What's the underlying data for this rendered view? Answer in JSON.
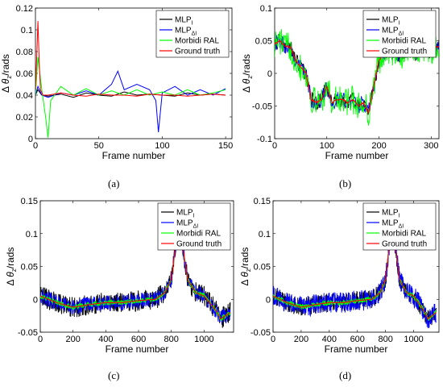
{
  "legend": {
    "mlp_i": "MLP",
    "mlp_i_sub": "I",
    "mlp_di": "MLP",
    "mlp_di_sub": "ΔI",
    "morbidi": "Morbidi RAL",
    "gt": "Ground truth"
  },
  "axis_common": {
    "xlabel": "Frame number",
    "ylabel_delta": "Δ",
    "ylabel_theta": "θ",
    "ylabel_sub": "z",
    "ylabel_unit": "/rads"
  },
  "colors": {
    "mlp_i": "#000000",
    "mlp_di": "#0000ff",
    "morbidi": "#00ff00",
    "gt": "#ff0000"
  },
  "chart_data": [
    {
      "id": "a",
      "caption": "(a)",
      "type": "line",
      "xlim": [
        0,
        155
      ],
      "ylim": [
        0,
        0.12
      ],
      "xticks": [
        0,
        50,
        100,
        150
      ],
      "yticks": [
        0,
        0.02,
        0.04,
        0.06,
        0.08,
        0.1,
        0.12
      ],
      "ytick_labels": [
        "0",
        "0.02",
        "0.04",
        "0.06",
        "0.08",
        "0.1",
        "0.12"
      ],
      "n": 150,
      "series": [
        {
          "name": "MLP_I",
          "key": "mlp_i",
          "x": [
            0,
            2,
            5,
            10,
            20,
            30,
            40,
            50,
            60,
            70,
            80,
            90,
            100,
            110,
            120,
            130,
            140,
            150
          ],
          "y": [
            0.04,
            0.045,
            0.04,
            0.039,
            0.041,
            0.038,
            0.042,
            0.04,
            0.039,
            0.043,
            0.04,
            0.041,
            0.04,
            0.039,
            0.042,
            0.04,
            0.041,
            0.04
          ]
        },
        {
          "name": "MLP_ΔI",
          "key": "mlp_di",
          "x": [
            0,
            2,
            5,
            10,
            20,
            30,
            40,
            50,
            60,
            65,
            70,
            80,
            90,
            95,
            97,
            100,
            110,
            120,
            130,
            140,
            150
          ],
          "y": [
            0.04,
            0.048,
            0.04,
            0.038,
            0.042,
            0.04,
            0.044,
            0.04,
            0.05,
            0.062,
            0.045,
            0.05,
            0.045,
            0.035,
            0.006,
            0.042,
            0.048,
            0.04,
            0.045,
            0.04,
            0.046
          ]
        },
        {
          "name": "Morbidi RAL",
          "key": "morbidi",
          "x": [
            0,
            2,
            5,
            8,
            10,
            12,
            20,
            30,
            40,
            50,
            60,
            70,
            80,
            90,
            100,
            110,
            120,
            130,
            140,
            150
          ],
          "y": [
            0.04,
            0.075,
            0.045,
            0.02,
            0.001,
            0.035,
            0.048,
            0.04,
            0.046,
            0.04,
            0.044,
            0.04,
            0.045,
            0.04,
            0.043,
            0.04,
            0.045,
            0.04,
            0.042,
            0.045
          ]
        },
        {
          "name": "Ground truth",
          "key": "gt",
          "x": [
            0,
            1,
            2,
            3,
            4,
            6,
            10,
            20,
            30,
            40,
            50,
            60,
            70,
            80,
            90,
            100,
            110,
            120,
            130,
            140,
            150
          ],
          "y": [
            0.045,
            0.075,
            0.108,
            0.07,
            0.045,
            0.04,
            0.04,
            0.042,
            0.04,
            0.039,
            0.041,
            0.04,
            0.04,
            0.039,
            0.041,
            0.04,
            0.04,
            0.039,
            0.04,
            0.041,
            0.04
          ]
        }
      ]
    },
    {
      "id": "b",
      "caption": "(b)",
      "type": "line",
      "xlim": [
        0,
        315
      ],
      "ylim": [
        -0.1,
        0.1
      ],
      "xticks": [
        0,
        100,
        200,
        300
      ],
      "yticks": [
        -0.1,
        -0.05,
        0,
        0.05,
        0.1
      ],
      "ytick_labels": [
        "-0.1",
        "-0.05",
        "0",
        "0.05",
        "0.1"
      ],
      "n": 315,
      "gt_x": [
        0,
        10,
        20,
        30,
        40,
        50,
        60,
        70,
        80,
        90,
        100,
        110,
        120,
        130,
        140,
        150,
        160,
        170,
        180,
        190,
        200,
        210,
        220,
        230,
        240,
        250,
        260,
        270,
        280,
        290,
        300,
        310,
        315
      ],
      "gt_y": [
        0.045,
        0.05,
        0.042,
        0.04,
        0.02,
        0.01,
        0.0,
        -0.04,
        -0.045,
        -0.04,
        -0.02,
        -0.045,
        -0.04,
        -0.04,
        -0.045,
        -0.04,
        -0.05,
        -0.045,
        -0.06,
        -0.02,
        0.02,
        0.03,
        0.035,
        0.03,
        0.025,
        0.035,
        0.04,
        0.03,
        0.04,
        0.035,
        0.035,
        0.04,
        0.04
      ],
      "noise": [
        0.012,
        0.012,
        0.022,
        0.008
      ],
      "series": [
        {
          "name": "MLP_I",
          "key": "mlp_i"
        },
        {
          "name": "MLP_ΔI",
          "key": "mlp_di"
        },
        {
          "name": "Morbidi RAL",
          "key": "morbidi"
        },
        {
          "name": "Ground truth",
          "key": "gt"
        }
      ]
    },
    {
      "id": "c",
      "caption": "(c)",
      "type": "line",
      "xlim": [
        0,
        1180
      ],
      "ylim": [
        -0.05,
        0.15
      ],
      "xticks": [
        0,
        200,
        400,
        600,
        800,
        1000
      ],
      "yticks": [
        -0.05,
        0,
        0.05,
        0.1,
        0.15
      ],
      "ytick_labels": [
        "-0.05",
        "0",
        "0.05",
        "0.1",
        "0.15"
      ],
      "n": 1160,
      "gt_x": [
        0,
        100,
        200,
        300,
        400,
        500,
        600,
        700,
        760,
        800,
        830,
        850,
        870,
        900,
        950,
        1000,
        1050,
        1080,
        1100,
        1130,
        1160
      ],
      "gt_y": [
        0.005,
        -0.005,
        -0.012,
        -0.008,
        -0.005,
        -0.005,
        -0.002,
        0.0,
        0.01,
        0.03,
        0.09,
        0.135,
        0.08,
        0.03,
        0.01,
        0.005,
        -0.01,
        -0.02,
        -0.03,
        -0.025,
        -0.02
      ],
      "noise": [
        0.016,
        0.012,
        0.004,
        0.0
      ],
      "series": [
        {
          "name": "MLP_I",
          "key": "mlp_i"
        },
        {
          "name": "MLP_ΔI",
          "key": "mlp_di"
        },
        {
          "name": "Morbidi RAL",
          "key": "morbidi"
        },
        {
          "name": "Ground truth",
          "key": "gt"
        }
      ]
    },
    {
      "id": "d",
      "caption": "(d)",
      "type": "line",
      "xlim": [
        0,
        1180
      ],
      "ylim": [
        -0.05,
        0.15
      ],
      "xticks": [
        0,
        200,
        400,
        600,
        800,
        1000
      ],
      "yticks": [
        -0.05,
        0,
        0.05,
        0.1,
        0.15
      ],
      "ytick_labels": [
        "-0.05",
        "0",
        "0.05",
        "0.1",
        "0.15"
      ],
      "n": 1160,
      "gt_x": [
        0,
        100,
        200,
        300,
        400,
        500,
        600,
        700,
        760,
        800,
        830,
        850,
        870,
        900,
        950,
        1000,
        1050,
        1080,
        1100,
        1130,
        1160
      ],
      "gt_y": [
        0.005,
        -0.005,
        -0.012,
        -0.008,
        -0.005,
        -0.005,
        -0.002,
        0.0,
        0.01,
        0.03,
        0.09,
        0.135,
        0.08,
        0.03,
        0.01,
        0.005,
        -0.01,
        -0.02,
        -0.03,
        -0.025,
        -0.02
      ],
      "noise": [
        0.014,
        0.016,
        0.004,
        0.0
      ],
      "series": [
        {
          "name": "MLP_I",
          "key": "mlp_i"
        },
        {
          "name": "MLP_ΔI",
          "key": "mlp_di"
        },
        {
          "name": "Morbidi RAL",
          "key": "morbidi"
        },
        {
          "name": "Ground truth",
          "key": "gt"
        }
      ]
    }
  ]
}
